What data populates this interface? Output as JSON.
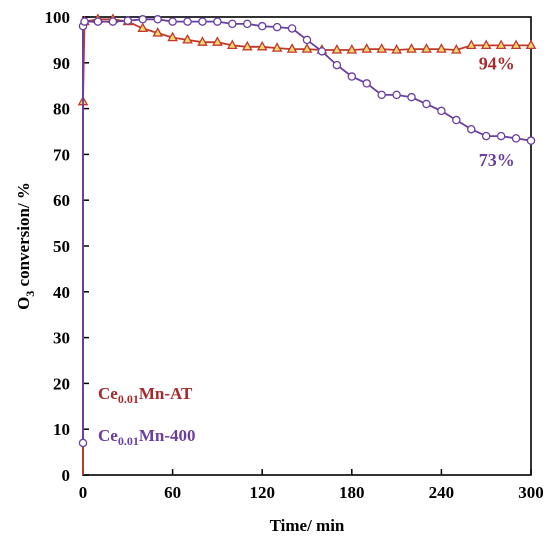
{
  "chart_data": {
    "type": "line",
    "xlabel": "Time/ min",
    "ylabel_main": "O",
    "ylabel_sub": "3",
    "ylabel_rest": " conversion/ %",
    "xlim": [
      0,
      300
    ],
    "ylim": [
      0,
      100
    ],
    "xticks": [
      0,
      60,
      120,
      180,
      240,
      300
    ],
    "yticks": [
      0,
      10,
      20,
      30,
      40,
      50,
      60,
      70,
      80,
      90,
      100
    ],
    "grid": false,
    "series": [
      {
        "name_main": "Ce",
        "name_sub": "0.01",
        "name_rest": "Mn-AT",
        "color": "#c0392b",
        "marker": "triangle",
        "x": [
          0,
          0,
          1,
          10,
          20,
          30,
          40,
          50,
          60,
          70,
          80,
          90,
          100,
          110,
          120,
          130,
          140,
          150,
          160,
          170,
          180,
          190,
          200,
          210,
          220,
          230,
          240,
          250,
          260,
          270,
          280,
          290,
          300
        ],
        "y": [
          0,
          81.5,
          99,
          99.5,
          99.5,
          99,
          97.5,
          96.5,
          95.5,
          95,
          94.5,
          94.5,
          93.8,
          93.5,
          93.5,
          93.2,
          93,
          93,
          92.8,
          92.8,
          92.8,
          93,
          93,
          92.8,
          93,
          93,
          93,
          92.8,
          93.8,
          93.8,
          93.8,
          93.8,
          93.8
        ]
      },
      {
        "name_main": "Ce",
        "name_sub": "0.01",
        "name_rest": "Mn-400",
        "color": "#6a3fa0",
        "marker": "circle",
        "x": [
          0,
          0,
          1,
          10,
          20,
          30,
          40,
          50,
          60,
          70,
          80,
          90,
          100,
          110,
          120,
          130,
          140,
          150,
          160,
          170,
          180,
          190,
          200,
          210,
          220,
          230,
          240,
          250,
          260,
          270,
          280,
          290,
          300
        ],
        "y": [
          7,
          98,
          99,
          99,
          99,
          99.2,
          99.5,
          99.5,
          99,
          99,
          99,
          99,
          98.5,
          98.5,
          98,
          97.8,
          97.5,
          95,
          92.5,
          89.5,
          87,
          85.5,
          83,
          83,
          82.5,
          81,
          79.5,
          77.5,
          75.5,
          74,
          74,
          73.5,
          73
        ]
      }
    ],
    "annotations": [
      {
        "text": "94%",
        "x": 265,
        "y": 88.5,
        "color": "#a52a2a"
      },
      {
        "text": "73%",
        "x": 265,
        "y": 67.5,
        "color": "#6a3fa0"
      }
    ]
  }
}
